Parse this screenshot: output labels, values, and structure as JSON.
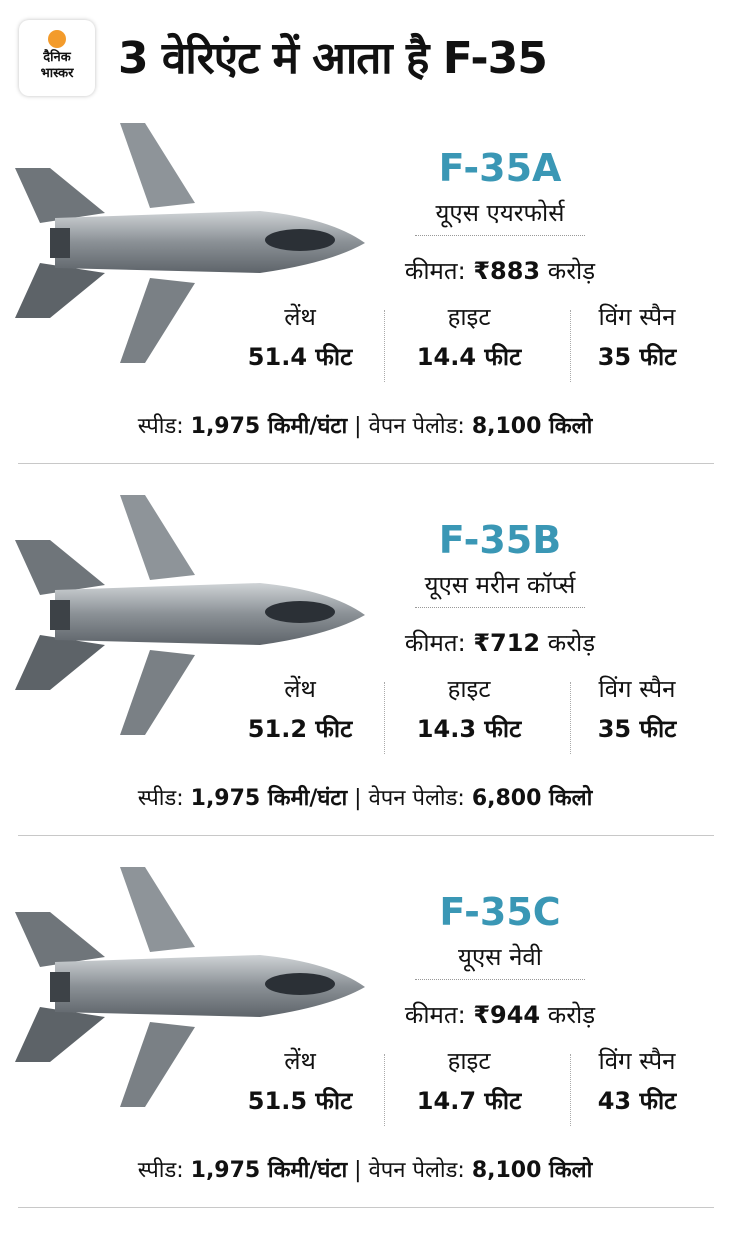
{
  "logo": {
    "line1": "दैनिक",
    "line2": "भास्कर",
    "sun_color": "#f39b2b"
  },
  "title": "3 वेरिएंट में आता है F-35",
  "accent_color": "#3a97b5",
  "labels": {
    "price": "कीमत:",
    "crore": "करोड़",
    "length": "लेंथ",
    "height": "हाइट",
    "wingspan": "विंग स्पैन",
    "speed": "स्पीड:",
    "payload": "वेपन पेलोड:"
  },
  "variants": [
    {
      "name": "F-35A",
      "operator": "यूएस एयरफोर्स",
      "price": "₹883",
      "length": "51.4 फीट",
      "height": "14.4 फीट",
      "wingspan": "35 फीट",
      "speed": "1,975 किमी/घंटा",
      "payload": "8,100 किलो"
    },
    {
      "name": "F-35B",
      "operator": "यूएस मरीन कॉर्प्स",
      "price": "₹712",
      "length": "51.2 फीट",
      "height": "14.3 फीट",
      "wingspan": "35 फीट",
      "speed": "1,975 किमी/घंटा",
      "payload": "6,800 किलो"
    },
    {
      "name": "F-35C",
      "operator": "यूएस नेवी",
      "price": "₹944",
      "length": "51.5 फीट",
      "height": "14.7 फीट",
      "wingspan": "43 फीट",
      "speed": "1,975 किमी/घंटा",
      "payload": "8,100 किलो"
    }
  ]
}
